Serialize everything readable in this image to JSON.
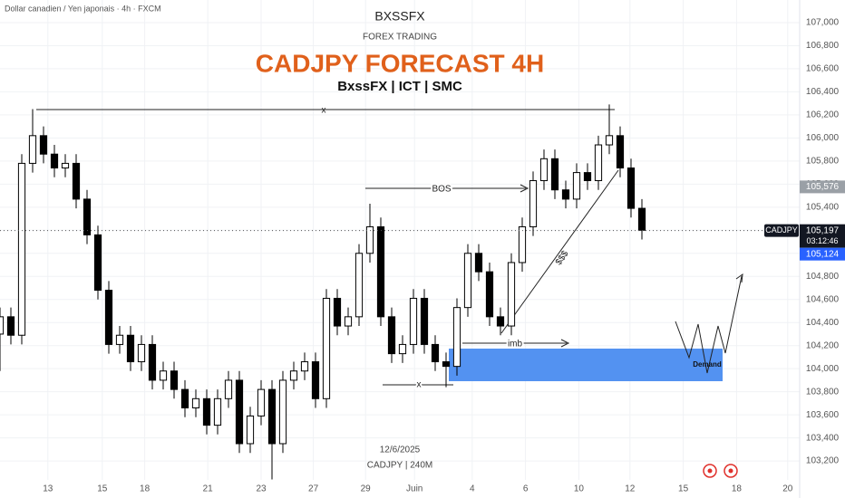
{
  "chart_data": {
    "type": "candlestick",
    "symbol_desc": "Dollar canadien / Yen japonais · 4h · FXCM",
    "header": "BXSSFX",
    "header_sub": "FOREX TRADING",
    "title": "CADJPY FORECAST 4H",
    "subtitle": "BxssFX | ICT | SMC",
    "watermark_date": "12/6/2025",
    "watermark_symbol": "CADJPY | 240M",
    "up_color": "#ffffff",
    "down_color": "#000000",
    "grid": true,
    "x": [
      0,
      1,
      2,
      3,
      4,
      5,
      6,
      7,
      8,
      9,
      10,
      11,
      12,
      13,
      14,
      15,
      16,
      17,
      18,
      19,
      20,
      21,
      22,
      23,
      24,
      25,
      26,
      27,
      28,
      29,
      30,
      31,
      32,
      33,
      34,
      35,
      36,
      37,
      38,
      39,
      40,
      41,
      42,
      43,
      44,
      45,
      46,
      47,
      48,
      49,
      50,
      51,
      52,
      53,
      54,
      55,
      56,
      57,
      58,
      59
    ],
    "open": [
      104.3,
      104.45,
      104.29,
      105.78,
      106.02,
      105.86,
      105.74,
      105.78,
      105.47,
      105.16,
      104.68,
      104.21,
      104.29,
      104.06,
      104.21,
      103.9,
      103.98,
      103.82,
      103.66,
      103.74,
      103.51,
      103.74,
      103.9,
      103.35,
      103.59,
      103.82,
      103.35,
      103.9,
      103.98,
      104.06,
      103.74,
      104.61,
      104.37,
      104.45,
      105.0,
      105.23,
      104.45,
      104.13,
      104.21,
      104.61,
      104.21,
      104.06,
      104.02,
      104.53,
      105.0,
      104.84,
      104.45,
      104.37,
      104.92,
      105.23,
      105.63,
      105.82,
      105.55,
      105.47,
      105.7,
      105.63,
      105.94,
      106.02,
      105.74,
      105.39
    ],
    "high": [
      104.53,
      104.53,
      105.86,
      106.25,
      106.1,
      105.94,
      105.86,
      105.86,
      105.55,
      105.24,
      104.76,
      104.37,
      104.37,
      104.29,
      104.29,
      104.06,
      104.06,
      103.9,
      103.82,
      103.82,
      103.82,
      103.98,
      103.98,
      103.67,
      103.9,
      103.9,
      103.98,
      104.06,
      104.14,
      104.14,
      104.69,
      104.69,
      104.53,
      105.08,
      105.43,
      105.31,
      104.53,
      104.29,
      104.69,
      104.69,
      104.29,
      104.14,
      104.61,
      105.08,
      105.08,
      104.92,
      104.53,
      105.0,
      105.31,
      105.71,
      105.9,
      105.9,
      105.63,
      105.78,
      105.78,
      106.02,
      106.29,
      106.1,
      105.82,
      105.47
    ],
    "low": [
      103.98,
      104.21,
      104.21,
      105.7,
      105.78,
      105.66,
      105.66,
      105.39,
      105.08,
      104.6,
      104.13,
      104.13,
      103.98,
      103.98,
      103.82,
      103.82,
      103.74,
      103.58,
      103.58,
      103.43,
      103.43,
      103.66,
      103.27,
      103.27,
      103.51,
      103.04,
      103.27,
      103.82,
      103.9,
      103.66,
      103.66,
      104.29,
      104.29,
      104.37,
      104.92,
      104.37,
      104.05,
      104.05,
      104.13,
      104.13,
      103.98,
      103.84,
      103.94,
      104.45,
      104.76,
      104.37,
      104.29,
      104.29,
      104.84,
      105.15,
      105.55,
      105.47,
      105.39,
      105.39,
      105.55,
      105.55,
      105.86,
      105.66,
      105.31,
      105.12
    ],
    "close": [
      104.45,
      104.29,
      105.78,
      106.02,
      105.86,
      105.74,
      105.78,
      105.47,
      105.16,
      104.68,
      104.21,
      104.29,
      104.06,
      104.21,
      103.9,
      103.98,
      103.82,
      103.66,
      103.74,
      103.51,
      103.74,
      103.9,
      103.35,
      103.59,
      103.82,
      103.35,
      103.9,
      103.98,
      104.06,
      103.74,
      104.61,
      104.37,
      104.45,
      105.0,
      105.23,
      104.45,
      104.13,
      104.21,
      104.61,
      104.21,
      104.06,
      104.02,
      104.53,
      105.0,
      104.84,
      104.45,
      104.37,
      104.92,
      105.23,
      105.63,
      105.82,
      105.55,
      105.47,
      105.7,
      105.63,
      105.94,
      106.02,
      105.74,
      105.39,
      105.2
    ],
    "xlim": [
      0,
      72.5
    ],
    "xticks": [
      {
        "value": 4.4,
        "label": "13"
      },
      {
        "value": 9.4,
        "label": "15"
      },
      {
        "value": 13.3,
        "label": "18"
      },
      {
        "value": 19.1,
        "label": "21"
      },
      {
        "value": 24,
        "label": "23"
      },
      {
        "value": 28.8,
        "label": "27"
      },
      {
        "value": 33.6,
        "label": "29"
      },
      {
        "value": 38.1,
        "label": "Juin"
      },
      {
        "value": 43.4,
        "label": "4"
      },
      {
        "value": 48.3,
        "label": "6"
      },
      {
        "value": 53.2,
        "label": "10"
      },
      {
        "value": 57.9,
        "label": "12"
      },
      {
        "value": 62.8,
        "label": "15"
      },
      {
        "value": 67.7,
        "label": "18"
      },
      {
        "value": 72.4,
        "label": "20"
      }
    ],
    "ylim": [
      103.036,
      107.196
    ],
    "yticks": [
      {
        "value": 103.2,
        "label": "103,200"
      },
      {
        "value": 103.4,
        "label": "103,400"
      },
      {
        "value": 103.6,
        "label": "103,600"
      },
      {
        "value": 103.8,
        "label": "103,800"
      },
      {
        "value": 104,
        "label": "104,000"
      },
      {
        "value": 104.2,
        "label": "104,200"
      },
      {
        "value": 104.4,
        "label": "104,400"
      },
      {
        "value": 104.6,
        "label": "104,600"
      },
      {
        "value": 104.8,
        "label": "104,800"
      },
      {
        "value": 105,
        "label": "105,000"
      },
      {
        "value": 105.2,
        "label": "105,200"
      },
      {
        "value": 105.4,
        "label": "105,400"
      },
      {
        "value": 105.6,
        "label": "105,600"
      },
      {
        "value": 105.8,
        "label": "105,800"
      },
      {
        "value": 106,
        "label": "106,000"
      },
      {
        "value": 106.2,
        "label": "106,200"
      },
      {
        "value": 106.4,
        "label": "106,400"
      },
      {
        "value": 106.6,
        "label": "106,600"
      },
      {
        "value": 106.8,
        "label": "106,800"
      },
      {
        "value": 107,
        "label": "107,000"
      }
    ],
    "price_labels": [
      {
        "value": 105.576,
        "label": "105,576",
        "color": "#9aa0a6"
      },
      {
        "value": 105.197,
        "label": "105,197",
        "color": "#131722"
      },
      {
        "value": 105.124,
        "label": "105,124",
        "color": "#2962ff"
      }
    ],
    "symbol_badge": "CADJPY",
    "timer": "03:12:46",
    "annotations": {
      "x_top": "x",
      "bos": "BOS",
      "x_bottom": "x",
      "imb": "imb",
      "liquidity": "$$$",
      "demand": "Demand"
    }
  }
}
